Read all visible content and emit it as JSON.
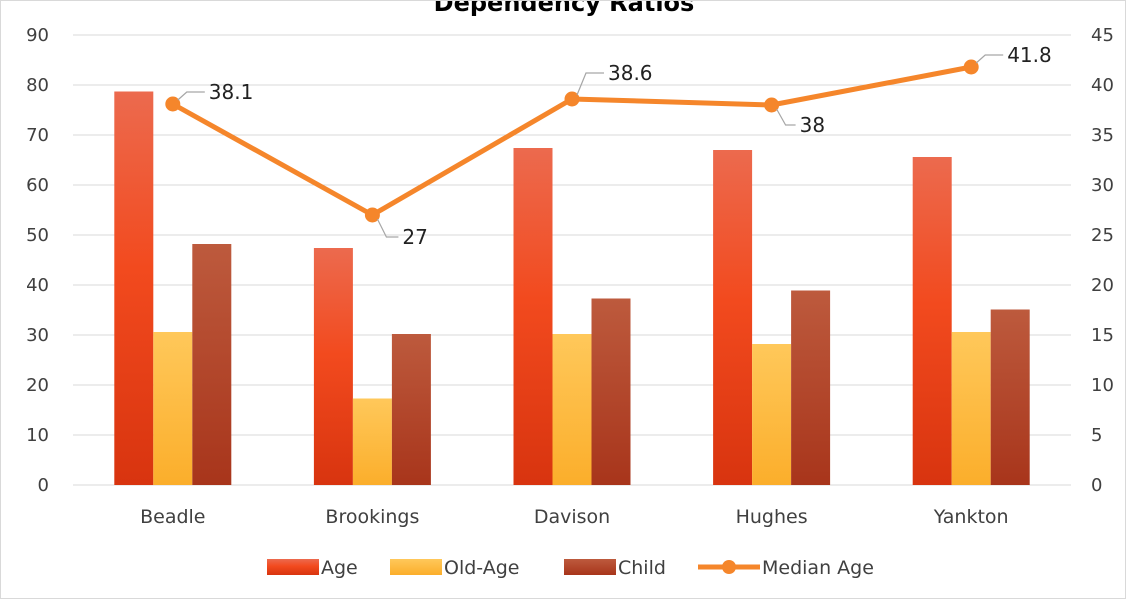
{
  "chart_data": {
    "type": "bar",
    "title": "Dependency Ratios",
    "categories": [
      "Beadle",
      "Brookings",
      "Davison",
      "Hughes",
      "Yankton"
    ],
    "series": [
      {
        "name": "Age",
        "axis": "left",
        "kind": "bar",
        "values": [
          78.7,
          47.4,
          67.4,
          67.0,
          65.6
        ]
      },
      {
        "name": "Old-Age",
        "axis": "left",
        "kind": "bar",
        "values": [
          30.6,
          17.3,
          30.2,
          28.2,
          30.6
        ]
      },
      {
        "name": "Child",
        "axis": "left",
        "kind": "bar",
        "values": [
          48.2,
          30.2,
          37.3,
          38.9,
          35.1
        ]
      },
      {
        "name": "Median Age",
        "axis": "right",
        "kind": "line",
        "values": [
          38.1,
          27,
          38.6,
          38,
          41.8
        ],
        "labels": [
          "38.1",
          "27",
          "38.6",
          "38",
          "41.8"
        ]
      }
    ],
    "y_left": {
      "min": 0,
      "max": 90,
      "step": 10,
      "ticks": [
        "0",
        "10",
        "20",
        "30",
        "40",
        "50",
        "60",
        "70",
        "80",
        "90"
      ]
    },
    "y_right": {
      "min": 0,
      "max": 45,
      "step": 5,
      "ticks": [
        "0",
        "5",
        "10",
        "15",
        "20",
        "25",
        "30",
        "35",
        "40",
        "45"
      ]
    },
    "grid": true,
    "legend": "bottom",
    "colors": {
      "Age": "#e8401c",
      "Old-Age": "#fdb932",
      "Child": "#b5422a",
      "Median Age": "#f5862b"
    }
  }
}
